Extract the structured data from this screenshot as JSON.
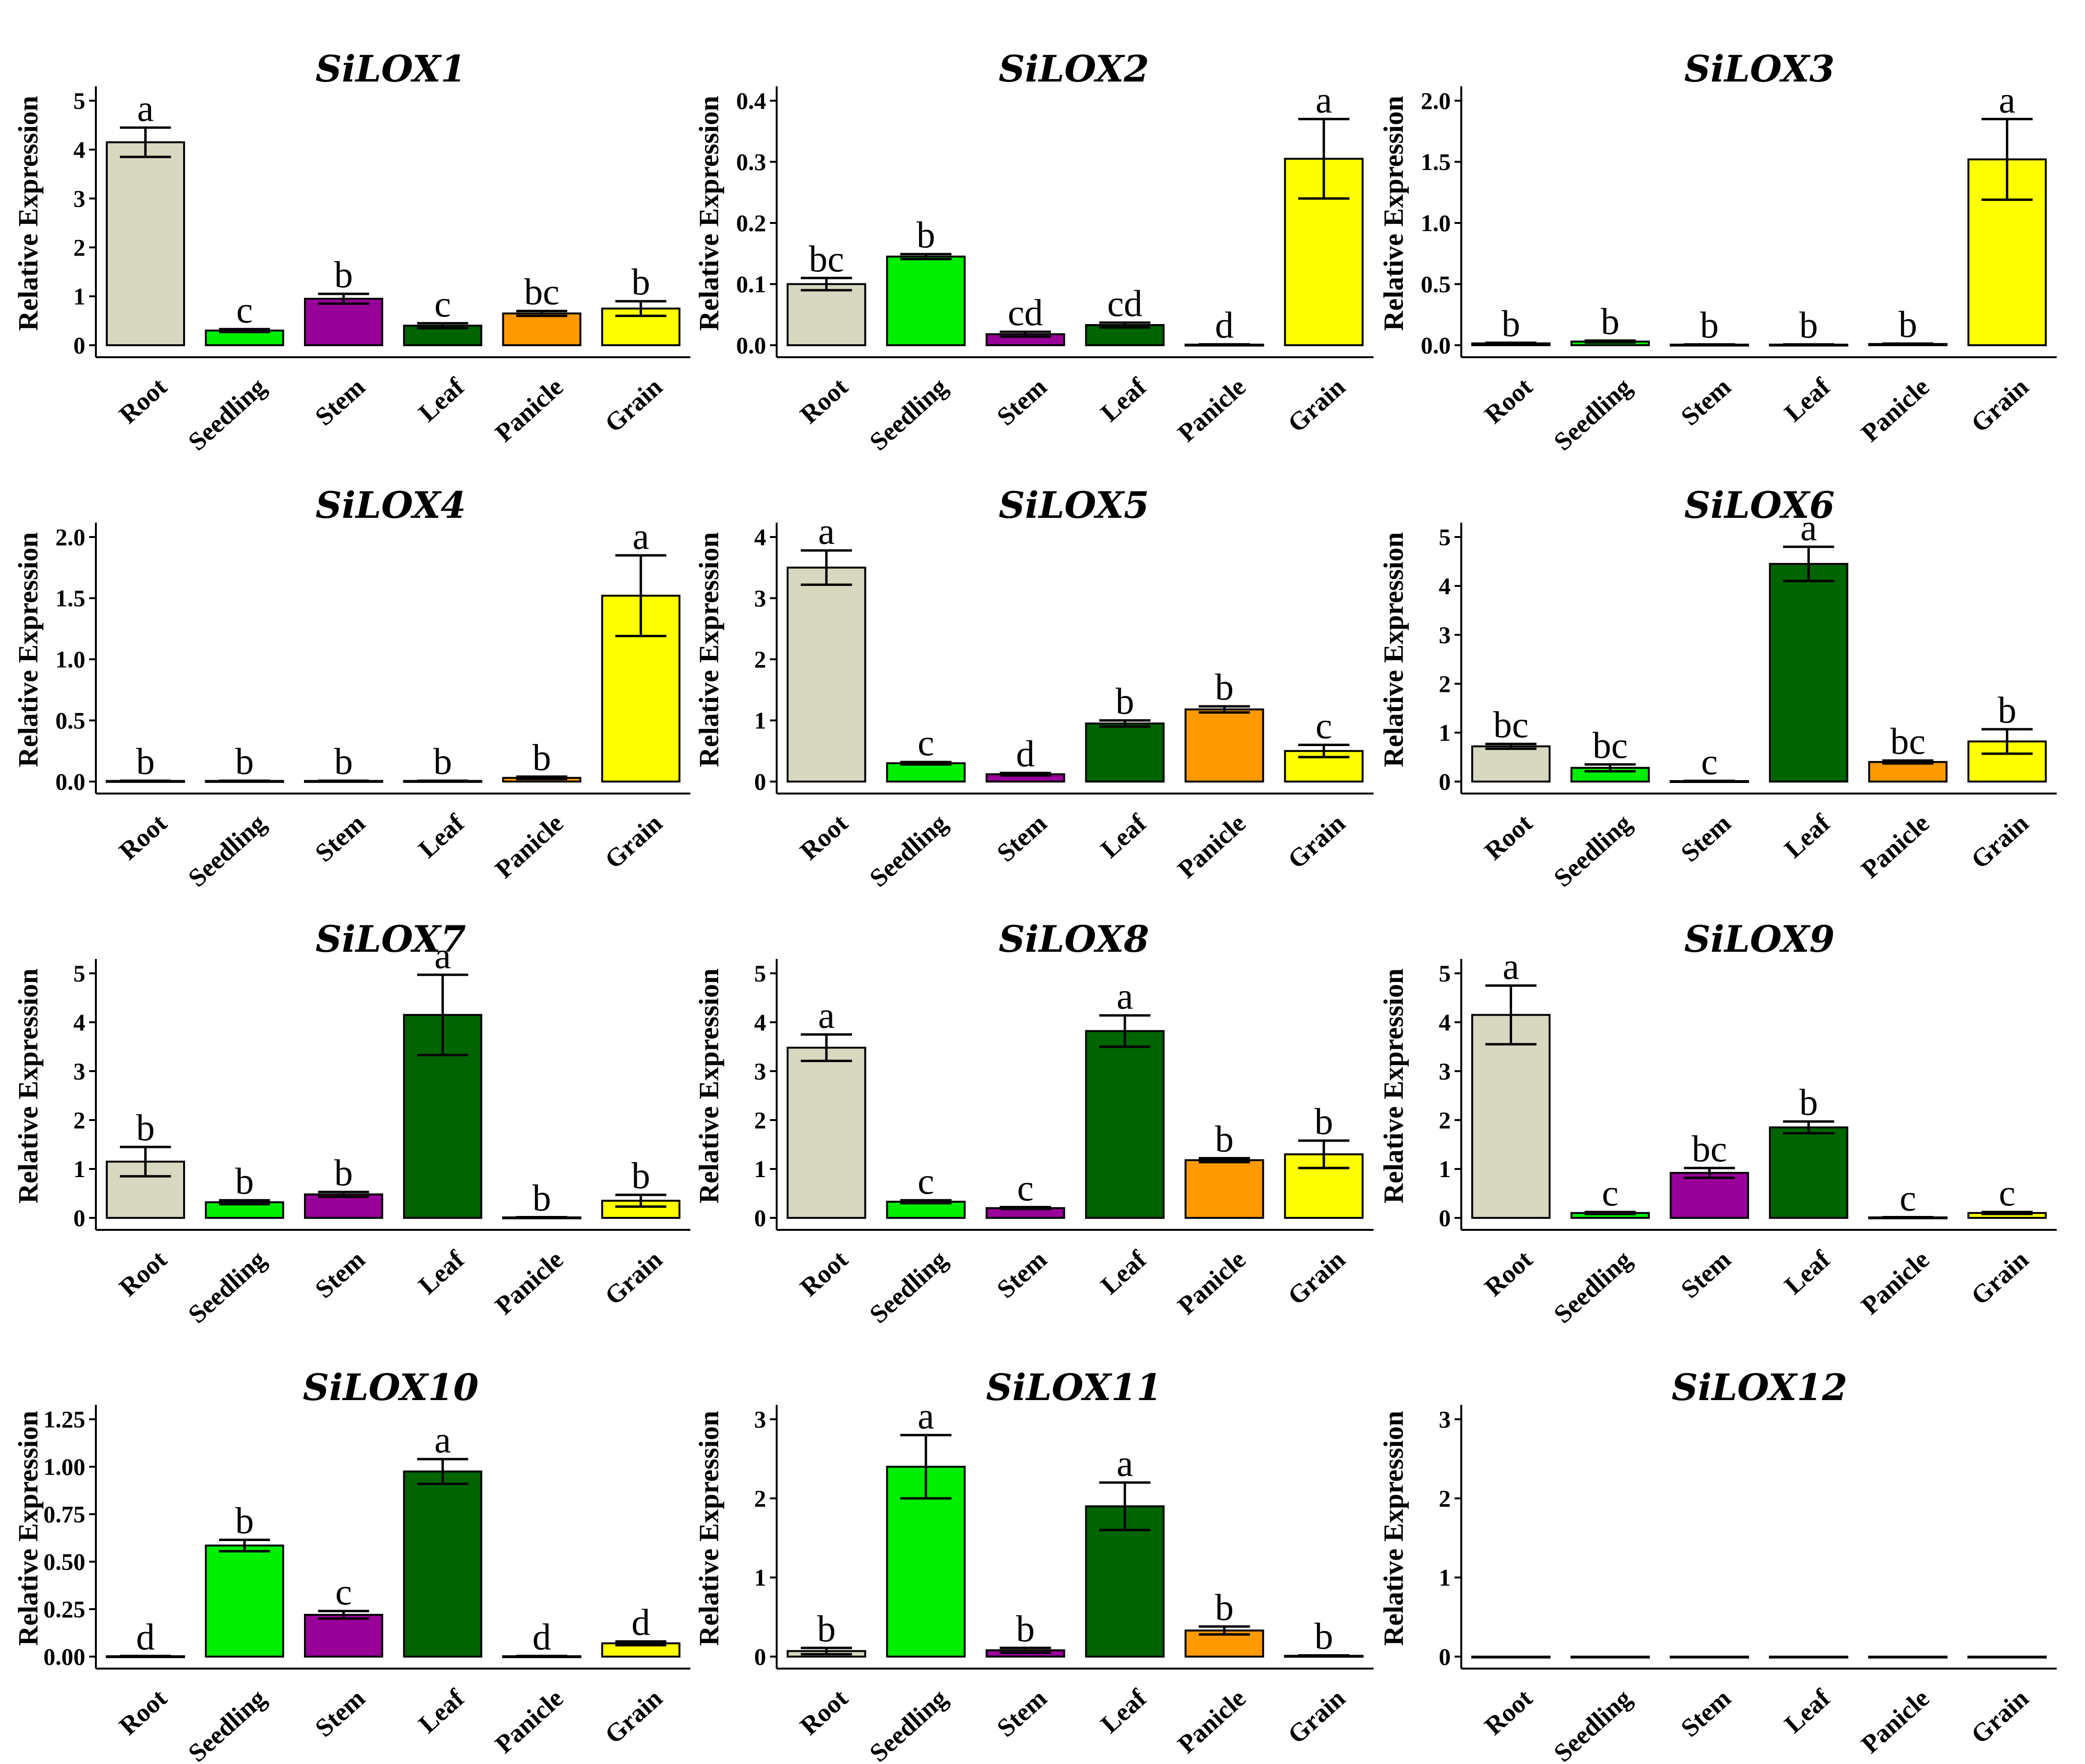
{
  "colors": {
    "Root": "#d8d8c0",
    "Seedling": "#00ee00",
    "Stem": "#990099",
    "Leaf": "#006400",
    "Panicle": "#ff9900",
    "Grain": "#ffff00"
  },
  "chart_data": [
    {
      "type": "bar",
      "title": "SiLOX1",
      "ylabel": "Relative Expression",
      "categories": [
        "Root",
        "Seedling",
        "Stem",
        "Leaf",
        "Panicle",
        "Grain"
      ],
      "values": [
        4.15,
        0.3,
        0.95,
        0.4,
        0.65,
        0.75
      ],
      "errors": [
        0.3,
        0.03,
        0.1,
        0.05,
        0.05,
        0.15
      ],
      "letters": [
        "a",
        "c",
        "b",
        "c",
        "bc",
        "b"
      ],
      "ylim": [
        0,
        5
      ],
      "yticks": [
        0,
        1,
        2,
        3,
        4,
        5
      ],
      "ytick_labels": [
        "0",
        "1",
        "2",
        "3",
        "4",
        "5"
      ]
    },
    {
      "type": "bar",
      "title": "SiLOX2",
      "ylabel": "Relative Expression",
      "categories": [
        "Root",
        "Seedling",
        "Stem",
        "Leaf",
        "Panicle",
        "Grain"
      ],
      "values": [
        0.1,
        0.145,
        0.018,
        0.033,
        0.001,
        0.305
      ],
      "errors": [
        0.01,
        0.004,
        0.004,
        0.004,
        0.0005,
        0.065
      ],
      "letters": [
        "bc",
        "b",
        "cd",
        "cd",
        "d",
        "a"
      ],
      "ylim": [
        0,
        0.4
      ],
      "yticks": [
        0,
        0.1,
        0.2,
        0.3,
        0.4
      ],
      "ytick_labels": [
        "0.0",
        "0.1",
        "0.2",
        "0.3",
        "0.4"
      ]
    },
    {
      "type": "bar",
      "title": "SiLOX3",
      "ylabel": "Relative Expression",
      "categories": [
        "Root",
        "Seedling",
        "Stem",
        "Leaf",
        "Panicle",
        "Grain"
      ],
      "values": [
        0.015,
        0.03,
        0.005,
        0.005,
        0.01,
        1.52
      ],
      "errors": [
        0.005,
        0.008,
        0.002,
        0.002,
        0.003,
        0.33
      ],
      "letters": [
        "b",
        "b",
        "b",
        "b",
        "b",
        "a"
      ],
      "ylim": [
        0,
        2.0
      ],
      "yticks": [
        0,
        0.5,
        1.0,
        1.5,
        2.0
      ],
      "ytick_labels": [
        "0.0",
        "0.5",
        "1.0",
        "1.5",
        "2.0"
      ]
    },
    {
      "type": "bar",
      "title": "SiLOX4",
      "ylabel": "Relative Expression",
      "categories": [
        "Root",
        "Seedling",
        "Stem",
        "Leaf",
        "Panicle",
        "Grain"
      ],
      "values": [
        0.005,
        0.005,
        0.005,
        0.005,
        0.03,
        1.52
      ],
      "errors": [
        0.002,
        0.002,
        0.002,
        0.002,
        0.01,
        0.33
      ],
      "letters": [
        "b",
        "b",
        "b",
        "b",
        "b",
        "a"
      ],
      "ylim": [
        0,
        2.0
      ],
      "yticks": [
        0,
        0.5,
        1.0,
        1.5,
        2.0
      ],
      "ytick_labels": [
        "0.0",
        "0.5",
        "1.0",
        "1.5",
        "2.0"
      ]
    },
    {
      "type": "bar",
      "title": "SiLOX5",
      "ylabel": "Relative Expression",
      "categories": [
        "Root",
        "Seedling",
        "Stem",
        "Leaf",
        "Panicle",
        "Grain"
      ],
      "values": [
        3.5,
        0.3,
        0.12,
        0.95,
        1.18,
        0.5
      ],
      "errors": [
        0.28,
        0.02,
        0.02,
        0.05,
        0.05,
        0.1
      ],
      "letters": [
        "a",
        "c",
        "d",
        "b",
        "b",
        "c"
      ],
      "ylim": [
        0,
        4
      ],
      "yticks": [
        0,
        1,
        2,
        3,
        4
      ],
      "ytick_labels": [
        "0",
        "1",
        "2",
        "3",
        "4"
      ]
    },
    {
      "type": "bar",
      "title": "SiLOX6",
      "ylabel": "Relative Expression",
      "categories": [
        "Root",
        "Seedling",
        "Stem",
        "Leaf",
        "Panicle",
        "Grain"
      ],
      "values": [
        0.72,
        0.28,
        0.01,
        4.45,
        0.4,
        0.82
      ],
      "errors": [
        0.05,
        0.07,
        0.005,
        0.35,
        0.03,
        0.25
      ],
      "letters": [
        "bc",
        "bc",
        "c",
        "a",
        "bc",
        "b"
      ],
      "ylim": [
        0,
        5
      ],
      "yticks": [
        0,
        1,
        2,
        3,
        4,
        5
      ],
      "ytick_labels": [
        "0",
        "1",
        "2",
        "3",
        "4",
        "5"
      ]
    },
    {
      "type": "bar",
      "title": "SiLOX7",
      "ylabel": "Relative Expression",
      "categories": [
        "Root",
        "Seedling",
        "Stem",
        "Leaf",
        "Panicle",
        "Grain"
      ],
      "values": [
        1.15,
        0.32,
        0.48,
        4.15,
        0.01,
        0.35
      ],
      "errors": [
        0.3,
        0.04,
        0.05,
        0.82,
        0.005,
        0.12
      ],
      "letters": [
        "b",
        "b",
        "b",
        "a",
        "b",
        "b"
      ],
      "ylim": [
        0,
        5
      ],
      "yticks": [
        0,
        1,
        2,
        3,
        4,
        5
      ],
      "ytick_labels": [
        "0",
        "1",
        "2",
        "3",
        "4",
        "5"
      ]
    },
    {
      "type": "bar",
      "title": "SiLOX8",
      "ylabel": "Relative Expression",
      "categories": [
        "Root",
        "Seedling",
        "Stem",
        "Leaf",
        "Panicle",
        "Grain"
      ],
      "values": [
        3.48,
        0.33,
        0.2,
        3.82,
        1.18,
        1.3
      ],
      "errors": [
        0.27,
        0.03,
        0.02,
        0.32,
        0.04,
        0.28
      ],
      "letters": [
        "a",
        "c",
        "c",
        "a",
        "b",
        "b"
      ],
      "ylim": [
        0,
        5
      ],
      "yticks": [
        0,
        1,
        2,
        3,
        4,
        5
      ],
      "ytick_labels": [
        "0",
        "1",
        "2",
        "3",
        "4",
        "5"
      ]
    },
    {
      "type": "bar",
      "title": "SiLOX9",
      "ylabel": "Relative Expression",
      "categories": [
        "Root",
        "Seedling",
        "Stem",
        "Leaf",
        "Panicle",
        "Grain"
      ],
      "values": [
        4.15,
        0.1,
        0.92,
        1.85,
        0.01,
        0.1
      ],
      "errors": [
        0.6,
        0.02,
        0.1,
        0.12,
        0.005,
        0.02
      ],
      "letters": [
        "a",
        "c",
        "bc",
        "b",
        "c",
        "c"
      ],
      "ylim": [
        0,
        5
      ],
      "yticks": [
        0,
        1,
        2,
        3,
        4,
        5
      ],
      "ytick_labels": [
        "0",
        "1",
        "2",
        "3",
        "4",
        "5"
      ]
    },
    {
      "type": "bar",
      "title": "SiLOX10",
      "ylabel": "Relative Expression",
      "categories": [
        "Root",
        "Seedling",
        "Stem",
        "Leaf",
        "Panicle",
        "Grain"
      ],
      "values": [
        0.002,
        0.585,
        0.22,
        0.975,
        0.002,
        0.07
      ],
      "errors": [
        0.001,
        0.03,
        0.02,
        0.065,
        0.001,
        0.01
      ],
      "letters": [
        "d",
        "b",
        "c",
        "a",
        "d",
        "d"
      ],
      "ylim": [
        0,
        1.25
      ],
      "yticks": [
        0,
        0.25,
        0.5,
        0.75,
        1.0,
        1.25
      ],
      "ytick_labels": [
        "0.00",
        "0.25",
        "0.50",
        "0.75",
        "1.00",
        "1.25"
      ]
    },
    {
      "type": "bar",
      "title": "SiLOX11",
      "ylabel": "Relative Expression",
      "categories": [
        "Root",
        "Seedling",
        "Stem",
        "Leaf",
        "Panicle",
        "Grain"
      ],
      "values": [
        0.07,
        2.4,
        0.08,
        1.9,
        0.33,
        0.01
      ],
      "errors": [
        0.04,
        0.4,
        0.03,
        0.3,
        0.05,
        0.005
      ],
      "letters": [
        "b",
        "a",
        "b",
        "a",
        "b",
        "b"
      ],
      "ylim": [
        0,
        3
      ],
      "yticks": [
        0,
        1,
        2,
        3
      ],
      "ytick_labels": [
        "0",
        "1",
        "2",
        "3"
      ]
    },
    {
      "type": "bar",
      "title": "SiLOX12",
      "ylabel": "Relative Expression",
      "categories": [
        "Root",
        "Seedling",
        "Stem",
        "Leaf",
        "Panicle",
        "Grain"
      ],
      "values": [
        0,
        0,
        0,
        0,
        0,
        0
      ],
      "errors": [
        0,
        0,
        0,
        0,
        0,
        0
      ],
      "letters": [
        "",
        "",
        "",
        "",
        "",
        ""
      ],
      "ylim": [
        0,
        3
      ],
      "yticks": [
        0,
        1,
        2,
        3
      ],
      "ytick_labels": [
        "0",
        "1",
        "2",
        "3"
      ]
    }
  ]
}
